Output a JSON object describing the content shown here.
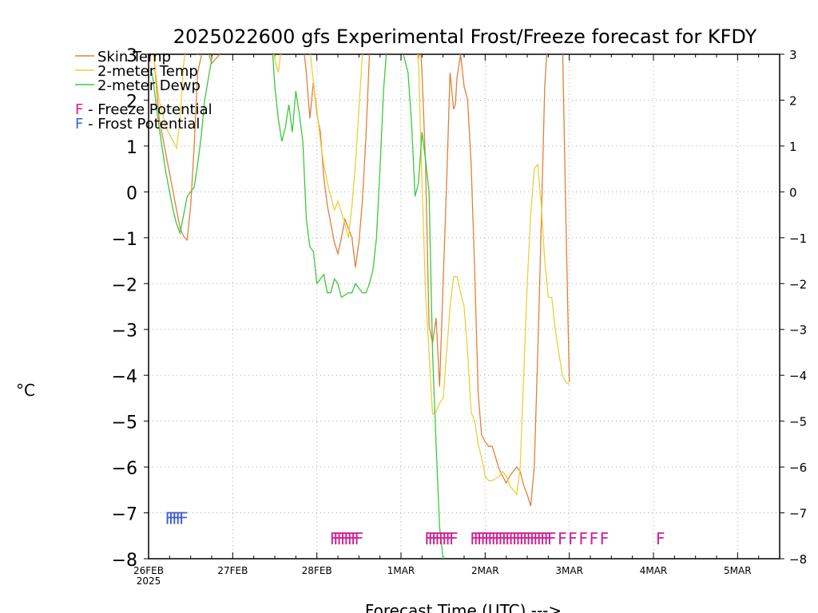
{
  "chart_data": {
    "type": "line",
    "title": "2025022600 gfs Experimental Frost/Freeze forecast for KFDY",
    "xlabel": "Forecast Time (UTC) --->",
    "ylabel": "°C",
    "ylim": [
      -8,
      3
    ],
    "xlim": [
      0,
      180
    ],
    "yticks": [
      3,
      2,
      1,
      0,
      -1,
      -2,
      -3,
      -4,
      -5,
      -6,
      -7,
      -8
    ],
    "xticks": [
      {
        "x": 0,
        "label": "26FEB",
        "sublabel": "2025"
      },
      {
        "x": 24,
        "label": "27FEB"
      },
      {
        "x": 48,
        "label": "28FEB"
      },
      {
        "x": 72,
        "label": "1MAR"
      },
      {
        "x": 96,
        "label": "2MAR"
      },
      {
        "x": 120,
        "label": "3MAR"
      },
      {
        "x": 144,
        "label": "4MAR"
      },
      {
        "x": 168,
        "label": "5MAR"
      }
    ],
    "x_units": "hours after 26FEB 00Z",
    "grid": true,
    "legend": {
      "position": "top-left",
      "entries": [
        {
          "label": "Skin Temp",
          "color": "#e0803a"
        },
        {
          "label": "2-meter Temp",
          "color": "#e6d23c"
        },
        {
          "label": "2-meter Dewp",
          "color": "#3cc83c"
        }
      ],
      "markers": [
        {
          "symbol": "F",
          "text": " - Freeze Potential",
          "color": "#d02090"
        },
        {
          "symbol": "F",
          "text": " - Frost Potential",
          "color": "#4060d0"
        }
      ]
    },
    "series": [
      {
        "name": "Skin Temp",
        "color": "#e0803a",
        "x": [
          1,
          3,
          5,
          7,
          8,
          9,
          10,
          11,
          12,
          13,
          14,
          16,
          18,
          26,
          33,
          35,
          36,
          38,
          40,
          42,
          44,
          45,
          46,
          47,
          48,
          49,
          50,
          51,
          52,
          53,
          54,
          55,
          56,
          57,
          58,
          59,
          60,
          61,
          62,
          63,
          64,
          65,
          70,
          76,
          77,
          77.5,
          78,
          79,
          80,
          81,
          82,
          83,
          84,
          85,
          86,
          87,
          87.5,
          88,
          89,
          90,
          91,
          92,
          93,
          94,
          95,
          96,
          97,
          98,
          99,
          100,
          101,
          102,
          103,
          104,
          105,
          106,
          107,
          108,
          109,
          110,
          111,
          112,
          113,
          114,
          115,
          116,
          117,
          118,
          119,
          120
        ],
        "y": [
          3.4,
          1.6,
          0.8,
          0.0,
          -0.4,
          -0.8,
          -0.97,
          -1.05,
          -0.3,
          1.0,
          2.6,
          3.3,
          2.8,
          3.5,
          3.5,
          3.4,
          3.2,
          3.0,
          3.3,
          3.4,
          3.3,
          2.6,
          1.6,
          2.4,
          1.7,
          1.3,
          0.3,
          -0.3,
          -0.7,
          -1.1,
          -1.35,
          -1.0,
          -0.6,
          -0.8,
          -1.0,
          -1.65,
          -1.1,
          -0.2,
          1.2,
          3.0,
          3.5,
          3.5,
          3.5,
          3.5,
          2.9,
          3.3,
          2.6,
          0.6,
          -2.9,
          -3.3,
          -2.75,
          -4.25,
          -2.0,
          0.2,
          2.6,
          1.8,
          1.9,
          2.5,
          3.0,
          2.3,
          2.0,
          0.6,
          -1.7,
          -4.4,
          -5.3,
          -5.45,
          -5.55,
          -5.55,
          -5.8,
          -6.05,
          -6.2,
          -6.35,
          -6.2,
          -6.1,
          -6.0,
          -6.1,
          -6.4,
          -6.6,
          -6.85,
          -6.0,
          -3.5,
          -0.7,
          2.3,
          3.5,
          3.5,
          3.5,
          3.5,
          3.5,
          -0.5,
          -4.15
        ]
      },
      {
        "name": "2-meter Temp",
        "color": "#e6d23c",
        "x": [
          1,
          3,
          5,
          7,
          8,
          9,
          10,
          11,
          12,
          13,
          14,
          16,
          18,
          25,
          35,
          36,
          37,
          38,
          40,
          42,
          44,
          46,
          47,
          48,
          49,
          50,
          51,
          52,
          53,
          54,
          55,
          56,
          57,
          58,
          59,
          60,
          61,
          62,
          63,
          64,
          65,
          72,
          76,
          77,
          78,
          79,
          80,
          81,
          82,
          83,
          84,
          85,
          86,
          87,
          88,
          89,
          90,
          91,
          92,
          93,
          94,
          95,
          96,
          97,
          98,
          99,
          100,
          101,
          102,
          103,
          104,
          105,
          106,
          107,
          108,
          109,
          110,
          111,
          112,
          113,
          114,
          115,
          116,
          117,
          118,
          119,
          120
        ],
        "y": [
          3.2,
          2.0,
          1.4,
          1.1,
          0.95,
          1.6,
          2.8,
          3.3,
          3.0,
          3.3,
          3.0,
          3.2,
          3.5,
          3.5,
          3.5,
          2.9,
          2.6,
          3.2,
          3.5,
          3.5,
          3.4,
          3.1,
          2.4,
          1.8,
          1.1,
          0.6,
          0.2,
          -0.1,
          -0.4,
          -0.2,
          -0.45,
          -0.7,
          -1.0,
          -0.3,
          0.6,
          1.8,
          3.0,
          3.5,
          3.5,
          3.5,
          3.5,
          3.5,
          3.5,
          2.8,
          0.2,
          -2.2,
          -3.5,
          -4.85,
          -4.8,
          -4.6,
          -4.5,
          -3.5,
          -2.5,
          -1.85,
          -1.85,
          -2.2,
          -2.5,
          -3.5,
          -4.8,
          -5.0,
          -5.5,
          -5.8,
          -6.2,
          -6.3,
          -6.3,
          -6.25,
          -6.2,
          -6.1,
          -6.2,
          -6.4,
          -6.5,
          -6.6,
          -6.0,
          -4.0,
          -2.0,
          -0.5,
          0.5,
          0.6,
          -0.3,
          -1.5,
          -2.3,
          -2.3,
          -3.0,
          -3.5,
          -4.0,
          -4.15,
          -4.2
        ],
        "x_note": "visible through 3MAR 00Z (~117h)"
      },
      {
        "name": "2-meter Dewp",
        "color": "#3cc83c",
        "x": [
          1,
          3,
          5,
          7,
          8,
          9,
          10,
          11,
          12,
          13,
          14,
          15,
          16,
          18,
          20,
          25,
          35,
          36,
          37,
          38,
          39,
          40,
          41,
          42,
          43,
          44,
          45,
          46,
          47,
          48,
          49,
          50,
          51,
          52,
          53,
          54,
          55,
          56,
          57,
          58,
          59,
          60,
          61,
          62,
          63,
          64,
          65,
          66,
          67,
          68,
          69,
          70,
          71,
          72,
          73,
          74,
          75,
          76,
          77,
          78,
          79,
          80,
          81,
          82,
          83,
          84
        ],
        "y": [
          2.6,
          1.4,
          0.4,
          -0.4,
          -0.7,
          -0.9,
          -0.5,
          -0.1,
          0.0,
          0.1,
          0.6,
          1.2,
          2.0,
          2.9,
          3.5,
          3.5,
          3.5,
          2.3,
          1.6,
          1.1,
          1.4,
          1.9,
          1.3,
          2.2,
          1.7,
          1.1,
          -0.6,
          -1.2,
          -1.3,
          -2.0,
          -1.9,
          -1.8,
          -2.2,
          -2.2,
          -1.9,
          -2.0,
          -2.3,
          -2.25,
          -2.2,
          -2.2,
          -2.0,
          -2.1,
          -2.2,
          -2.2,
          -2.0,
          -1.7,
          -1.0,
          0.5,
          2.2,
          3.2,
          3.5,
          3.5,
          3.5,
          3.2,
          2.9,
          2.6,
          1.5,
          -0.1,
          0.2,
          1.3,
          0.7,
          0.0,
          -3.5,
          -5.5,
          -7.3,
          -8.0
        ]
      }
    ],
    "markers": [
      {
        "type": "frost",
        "symbol": "F",
        "color": "#4060d0",
        "y": -7.1,
        "x": [
          6,
          7,
          8,
          9,
          10
        ]
      },
      {
        "type": "freeze",
        "symbol": "F",
        "color": "#d02090",
        "y": -7.55,
        "x": [
          53,
          54,
          55,
          56,
          57,
          58,
          59,
          60
        ]
      },
      {
        "type": "freeze",
        "symbol": "F",
        "color": "#d02090",
        "y": -7.55,
        "x": [
          80,
          81,
          82,
          83,
          84,
          85,
          86,
          87
        ]
      },
      {
        "type": "freeze",
        "symbol": "F",
        "color": "#d02090",
        "y": -7.55,
        "x": [
          93,
          94,
          95,
          96,
          97,
          98,
          99,
          100,
          101,
          102,
          103,
          104,
          105,
          106,
          107,
          108,
          109,
          110,
          111,
          112,
          113,
          114,
          115
        ]
      },
      {
        "type": "freeze",
        "symbol": "F",
        "color": "#d02090",
        "y": -7.55,
        "x": [
          118,
          121,
          124,
          127,
          130
        ]
      },
      {
        "type": "freeze",
        "symbol": "F",
        "color": "#d02090",
        "y": -7.55,
        "x": [
          146
        ]
      }
    ]
  }
}
